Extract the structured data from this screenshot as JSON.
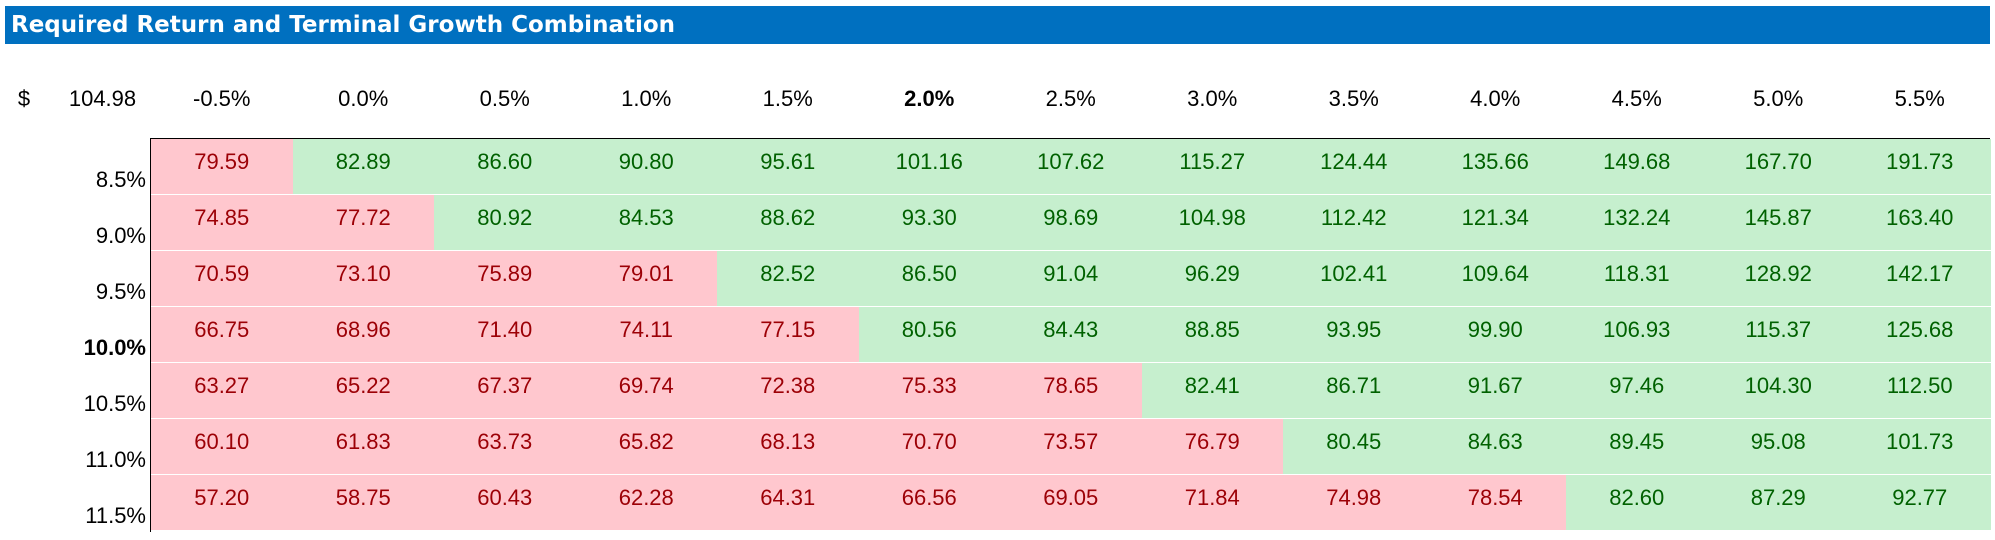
{
  "title": "Required Return and Terminal Growth Combination",
  "corner": {
    "currency": "$",
    "value": "104.98"
  },
  "growth_rates": [
    "-0.5%",
    "0.0%",
    "0.5%",
    "1.0%",
    "1.5%",
    "2.0%",
    "2.5%",
    "3.0%",
    "3.5%",
    "4.0%",
    "4.5%",
    "5.0%",
    "5.5%"
  ],
  "highlight_growth": "2.0%",
  "highlight_return": "10.0%",
  "threshold": 80,
  "colors": {
    "title_bg": "#0070C0",
    "below_fill": "#FFC7CE",
    "below_text": "#9C0006",
    "above_fill": "#C6EFCE",
    "above_text": "#006100"
  },
  "rows": [
    {
      "return": "8.5%",
      "values": [
        "79.59",
        "82.89",
        "86.60",
        "90.80",
        "95.61",
        "101.16",
        "107.62",
        "115.27",
        "124.44",
        "135.66",
        "149.68",
        "167.70",
        "191.73"
      ]
    },
    {
      "return": "9.0%",
      "values": [
        "74.85",
        "77.72",
        "80.92",
        "84.53",
        "88.62",
        "93.30",
        "98.69",
        "104.98",
        "112.42",
        "121.34",
        "132.24",
        "145.87",
        "163.40"
      ]
    },
    {
      "return": "9.5%",
      "values": [
        "70.59",
        "73.10",
        "75.89",
        "79.01",
        "82.52",
        "86.50",
        "91.04",
        "96.29",
        "102.41",
        "109.64",
        "118.31",
        "128.92",
        "142.17"
      ]
    },
    {
      "return": "10.0%",
      "values": [
        "66.75",
        "68.96",
        "71.40",
        "74.11",
        "77.15",
        "80.56",
        "84.43",
        "88.85",
        "93.95",
        "99.90",
        "106.93",
        "115.37",
        "125.68"
      ]
    },
    {
      "return": "10.5%",
      "values": [
        "63.27",
        "65.22",
        "67.37",
        "69.74",
        "72.38",
        "75.33",
        "78.65",
        "82.41",
        "86.71",
        "91.67",
        "97.46",
        "104.30",
        "112.50"
      ]
    },
    {
      "return": "11.0%",
      "values": [
        "60.10",
        "61.83",
        "63.73",
        "65.82",
        "68.13",
        "70.70",
        "73.57",
        "76.79",
        "80.45",
        "84.63",
        "89.45",
        "95.08",
        "101.73"
      ]
    },
    {
      "return": "11.5%",
      "values": [
        "57.20",
        "58.75",
        "60.43",
        "62.28",
        "64.31",
        "66.56",
        "69.05",
        "71.84",
        "74.98",
        "78.54",
        "82.60",
        "87.29",
        "92.77"
      ]
    }
  ]
}
